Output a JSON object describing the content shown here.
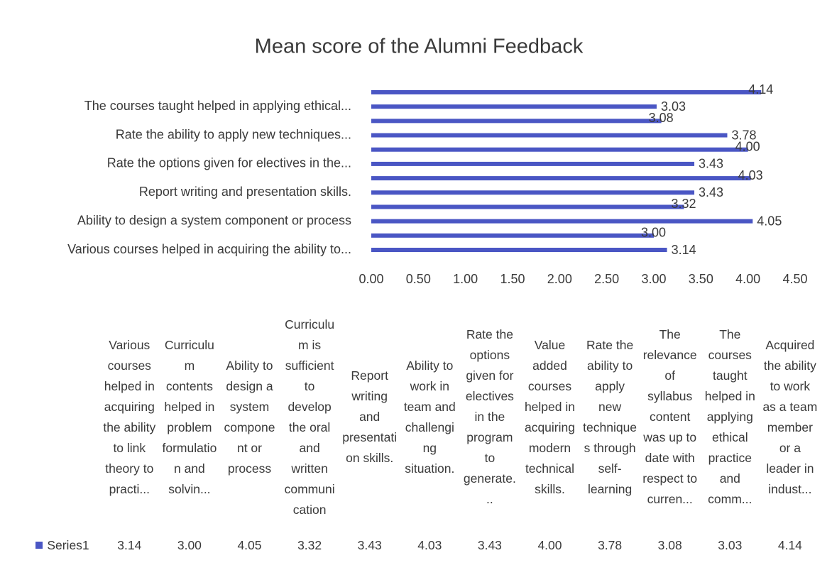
{
  "chart_data": {
    "type": "bar",
    "orientation": "horizontal",
    "title": "Mean score of the Alumni Feedback",
    "y_axis_labels": [
      "Various courses helped in acquiring the ability to...",
      null,
      "Ability to design a system component or process",
      null,
      "Report writing and presentation skills.",
      null,
      "Rate the options given for electives in the...",
      null,
      "Rate the ability to apply new techniques...",
      null,
      "The courses taught helped in applying ethical...",
      null
    ],
    "categories": [
      "Various courses helped in acquiring the ability to link theory to practi...",
      "Curriculum contents helped in problem formulation and solvin...",
      "Ability to design a system component or process",
      "Curriculum is sufficient to develop the oral and written communication",
      "Report writing and presentation skills.",
      "Ability to work in team and challenging situation.",
      "Rate the options given for electives in the program to generate...",
      "Value added courses helped in acquiring modern technical skills.",
      "Rate the ability to apply new techniques through self-learning",
      "The relevance of syllabus content was up to date with respect to curren...",
      "The courses taught helped in applying ethical practice and comm...",
      "Acquired the ability to work as a team member or a leader in indust..."
    ],
    "series": [
      {
        "name": "Series1",
        "color": "#4a56c4",
        "values": [
          3.14,
          3.0,
          4.05,
          3.32,
          3.43,
          4.03,
          3.43,
          4.0,
          3.78,
          3.08,
          3.03,
          4.14
        ],
        "value_labels": [
          "3.14",
          "3.00",
          "4.05",
          "3.32",
          "3.43",
          "4.03",
          "3.43",
          "4.00",
          "3.78",
          "3.08",
          "3.03",
          "4.14"
        ]
      }
    ],
    "xlim": [
      0,
      4.5
    ],
    "xticks": [
      {
        "value": 0,
        "label": "0.00"
      },
      {
        "value": 0.5,
        "label": "0.50"
      },
      {
        "value": 1,
        "label": "1.00"
      },
      {
        "value": 1.5,
        "label": "1.50"
      },
      {
        "value": 2,
        "label": "2.00"
      },
      {
        "value": 2.5,
        "label": "2.50"
      },
      {
        "value": 3,
        "label": "3.00"
      },
      {
        "value": 3.5,
        "label": "3.50"
      },
      {
        "value": 4,
        "label": "4.00"
      },
      {
        "value": 4.5,
        "label": "4.50"
      }
    ],
    "grid": false,
    "data_table": true
  }
}
